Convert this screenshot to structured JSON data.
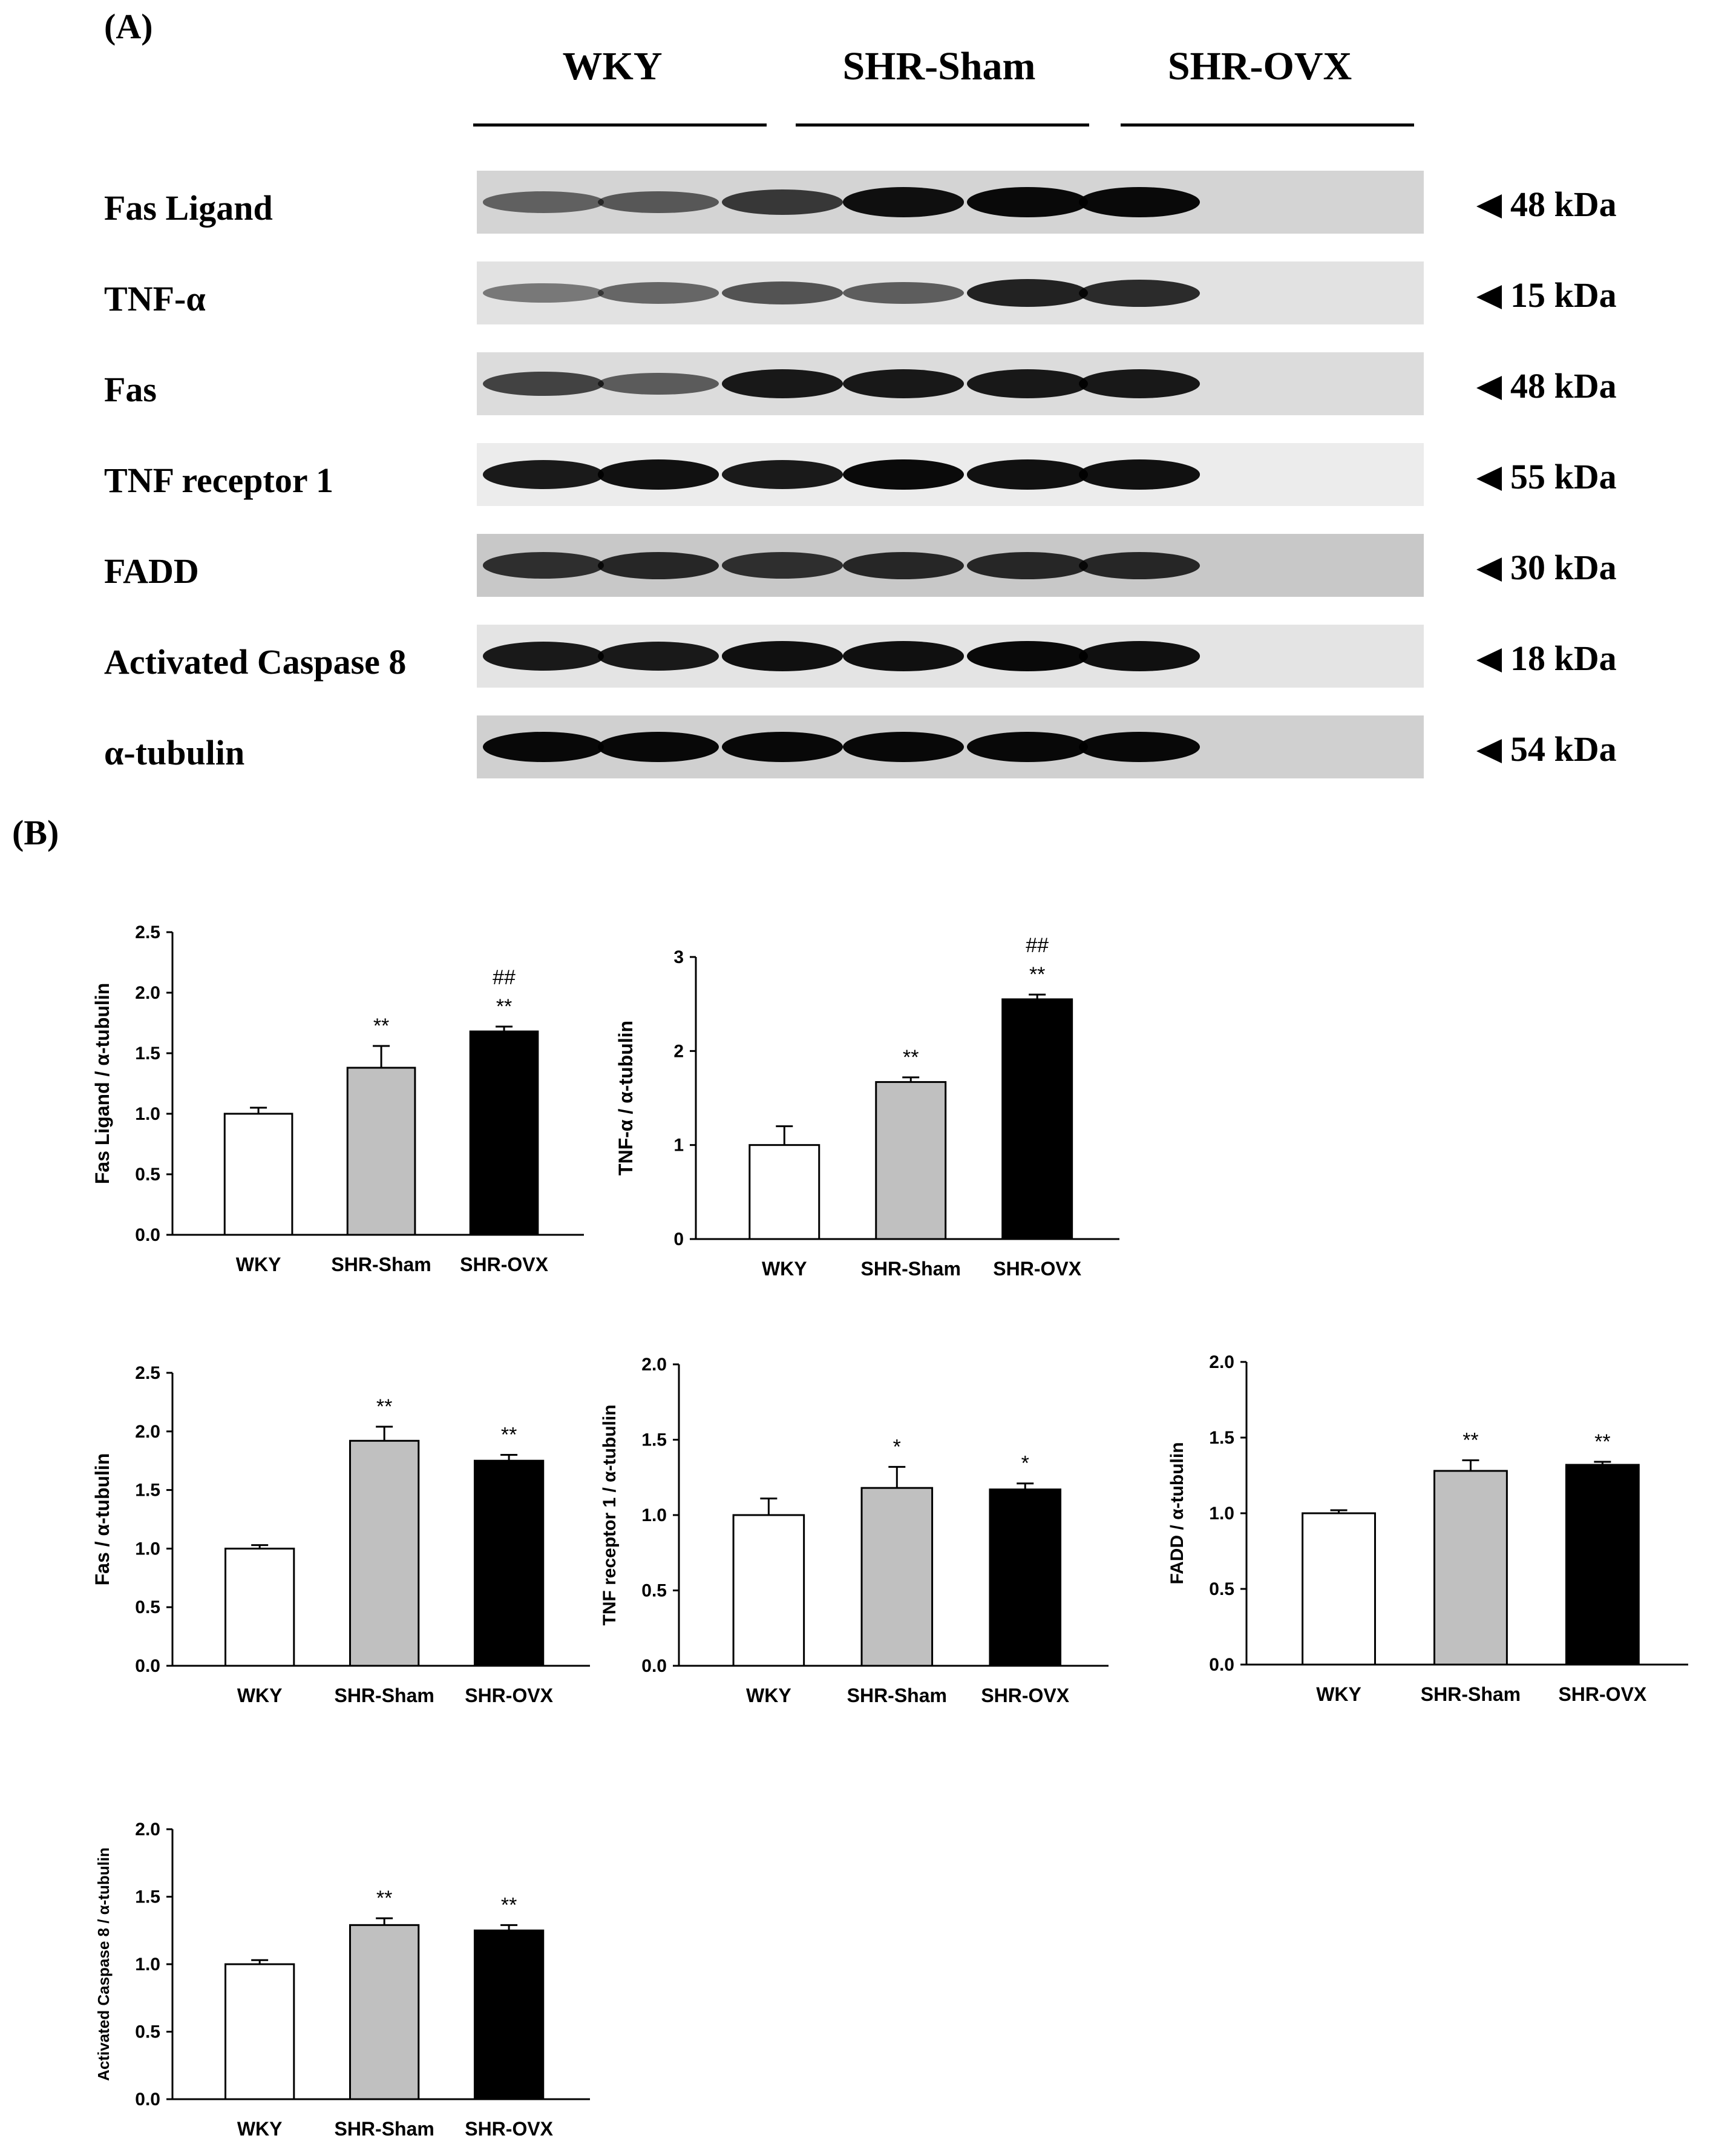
{
  "panels": {
    "a_label": "(A)",
    "b_label": "(B)"
  },
  "groups": [
    "WKY",
    "SHR-Sham",
    "SHR-OVX"
  ],
  "blot": {
    "rows": [
      {
        "label": "Fas Ligand",
        "kda": "48 kDa",
        "bg": "#d4d4d4",
        "intensity": [
          0.4,
          0.45,
          0.65,
          0.9,
          0.95,
          0.95
        ]
      },
      {
        "label": "TNF-α",
        "kda": "15 kDa",
        "bg": "#e2e2e2",
        "intensity": [
          0.3,
          0.4,
          0.5,
          0.45,
          0.8,
          0.75
        ]
      },
      {
        "label": "Fas",
        "kda": "48 kDa",
        "bg": "#dcdcdc",
        "intensity": [
          0.6,
          0.45,
          0.85,
          0.85,
          0.85,
          0.85
        ]
      },
      {
        "label": "TNF receptor 1",
        "kda": "55 kDa",
        "bg": "#ececec",
        "intensity": [
          0.85,
          0.9,
          0.85,
          0.95,
          0.9,
          0.9
        ]
      },
      {
        "label": "FADD",
        "kda": "30 kDa",
        "bg": "#c8c8c8",
        "intensity": [
          0.7,
          0.75,
          0.7,
          0.75,
          0.75,
          0.75
        ]
      },
      {
        "label": "Activated Caspase 8",
        "kda": "18 kDa",
        "bg": "#e4e4e4",
        "intensity": [
          0.85,
          0.85,
          0.9,
          0.9,
          0.95,
          0.9
        ]
      },
      {
        "label": "α-tubulin",
        "kda": "54 kDa",
        "bg": "#d0d0d0",
        "intensity": [
          0.95,
          0.95,
          0.95,
          0.95,
          0.95,
          0.95
        ]
      }
    ]
  },
  "chart_data": [
    {
      "type": "bar",
      "categories": [
        "WKY",
        "SHR-Sham",
        "SHR-OVX"
      ],
      "values": [
        1.0,
        1.38,
        1.68
      ],
      "errors": [
        0.05,
        0.18,
        0.04
      ],
      "annotations": [
        "",
        "**",
        "**"
      ],
      "annotations2": [
        "",
        "",
        "##"
      ],
      "ylabel": "Fas Ligand / α-tubulin",
      "ylim": [
        0,
        2.5
      ],
      "yticks": [
        "0.0",
        "0.5",
        "1.0",
        "1.5",
        "2.0",
        "2.5"
      ],
      "tick_values": [
        0,
        0.5,
        1.0,
        1.5,
        2.0,
        2.5
      ],
      "colors": [
        "#ffffff",
        "#c0c0c0",
        "#000000"
      ]
    },
    {
      "type": "bar",
      "categories": [
        "WKY",
        "SHR-Sham",
        "SHR-OVX"
      ],
      "values": [
        1.0,
        1.67,
        2.55
      ],
      "errors": [
        0.2,
        0.05,
        0.05
      ],
      "annotations": [
        "",
        "**",
        "**"
      ],
      "annotations2": [
        "",
        "",
        "##"
      ],
      "ylabel": "TNF-α / α-tubulin",
      "ylim": [
        0,
        3
      ],
      "yticks": [
        "0",
        "1",
        "2",
        "3"
      ],
      "tick_values": [
        0,
        1,
        2,
        3
      ],
      "colors": [
        "#ffffff",
        "#c0c0c0",
        "#000000"
      ]
    },
    {
      "type": "bar",
      "categories": [
        "WKY",
        "SHR-Sham",
        "SHR-OVX"
      ],
      "values": [
        1.0,
        1.92,
        1.75
      ],
      "errors": [
        0.03,
        0.12,
        0.05
      ],
      "annotations": [
        "",
        "**",
        "**"
      ],
      "annotations2": [
        "",
        "",
        ""
      ],
      "ylabel": "Fas / α-tubulin",
      "ylim": [
        0,
        2.5
      ],
      "yticks": [
        "0.0",
        "0.5",
        "1.0",
        "1.5",
        "2.0",
        "2.5"
      ],
      "tick_values": [
        0,
        0.5,
        1.0,
        1.5,
        2.0,
        2.5
      ],
      "colors": [
        "#ffffff",
        "#c0c0c0",
        "#000000"
      ]
    },
    {
      "type": "bar",
      "categories": [
        "WKY",
        "SHR-Sham",
        "SHR-OVX"
      ],
      "values": [
        1.0,
        1.18,
        1.17
      ],
      "errors": [
        0.11,
        0.14,
        0.04
      ],
      "annotations": [
        "",
        "*",
        "*"
      ],
      "annotations2": [
        "",
        "",
        ""
      ],
      "ylabel": "TNF receptor 1 / α-tubulin",
      "ylim": [
        0,
        2.0
      ],
      "yticks": [
        "0.0",
        "0.5",
        "1.0",
        "1.5",
        "2.0"
      ],
      "tick_values": [
        0,
        0.5,
        1.0,
        1.5,
        2.0
      ],
      "colors": [
        "#ffffff",
        "#c0c0c0",
        "#000000"
      ]
    },
    {
      "type": "bar",
      "categories": [
        "WKY",
        "SHR-Sham",
        "SHR-OVX"
      ],
      "values": [
        1.0,
        1.28,
        1.32
      ],
      "errors": [
        0.02,
        0.07,
        0.02
      ],
      "annotations": [
        "",
        "**",
        "**"
      ],
      "annotations2": [
        "",
        "",
        ""
      ],
      "ylabel": "FADD / α-tubulin",
      "ylim": [
        0,
        2.0
      ],
      "yticks": [
        "0.0",
        "0.5",
        "1.0",
        "1.5",
        "2.0"
      ],
      "tick_values": [
        0,
        0.5,
        1.0,
        1.5,
        2.0
      ],
      "colors": [
        "#ffffff",
        "#c0c0c0",
        "#000000"
      ]
    },
    {
      "type": "bar",
      "categories": [
        "WKY",
        "SHR-Sham",
        "SHR-OVX"
      ],
      "values": [
        1.0,
        1.29,
        1.25
      ],
      "errors": [
        0.03,
        0.05,
        0.04
      ],
      "annotations": [
        "",
        "**",
        "**"
      ],
      "annotations2": [
        "",
        "",
        ""
      ],
      "ylabel": "Activated Caspase 8 / α-tubulin",
      "ylim": [
        0,
        2.0
      ],
      "yticks": [
        "0.0",
        "0.5",
        "1.0",
        "1.5",
        "2.0"
      ],
      "tick_values": [
        0,
        0.5,
        1.0,
        1.5,
        2.0
      ],
      "colors": [
        "#ffffff",
        "#c0c0c0",
        "#000000"
      ]
    }
  ]
}
